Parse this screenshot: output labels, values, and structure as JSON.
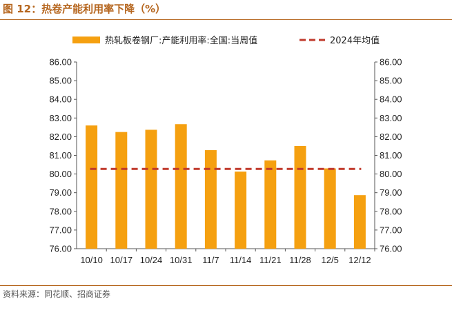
{
  "title": "图 12：热卷产能利用率下降（%）",
  "source": "资料来源：同花顺、招商证券",
  "colors": {
    "bar": "#F5A010",
    "line": "#C0392B",
    "header": "#B5651D"
  },
  "chart_data": {
    "type": "bar",
    "categories": [
      "10/10",
      "10/17",
      "10/24",
      "10/31",
      "11/7",
      "11/14",
      "11/21",
      "11/28",
      "12/5",
      "12/12"
    ],
    "series": [
      {
        "name": "热轧板卷钢厂:产能利用率:全国:当周值",
        "type": "bar",
        "values": [
          82.6,
          82.25,
          82.37,
          82.67,
          81.28,
          80.13,
          80.73,
          81.5,
          80.3,
          78.87
        ]
      },
      {
        "name": "2024年均值",
        "type": "dashed-line",
        "value": 80.27
      }
    ],
    "ylim": [
      76,
      86
    ],
    "yticks": [
      "86.00",
      "85.00",
      "84.00",
      "83.00",
      "82.00",
      "81.00",
      "80.00",
      "79.00",
      "78.00",
      "77.00",
      "76.00"
    ],
    "y_axes": "left-and-right",
    "legend_position": "top"
  }
}
